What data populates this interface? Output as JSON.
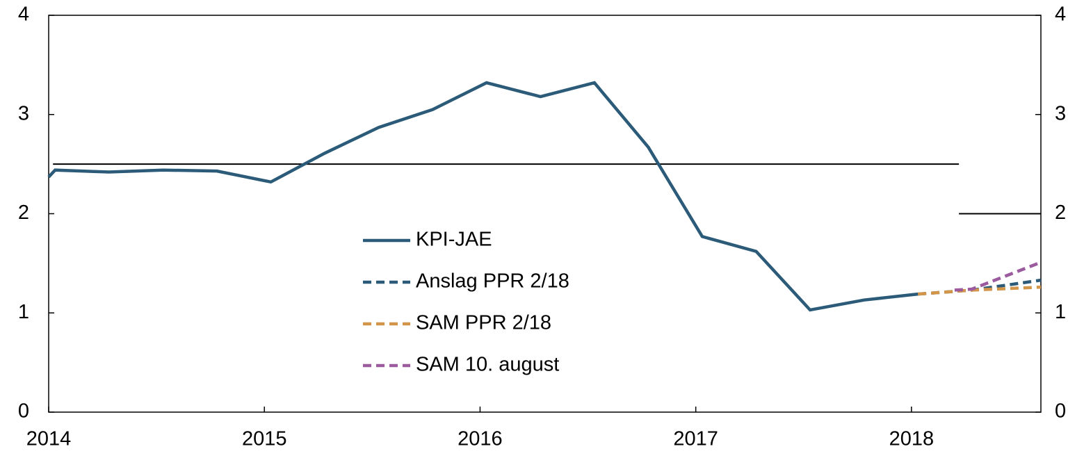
{
  "chart_data": {
    "type": "line",
    "xlim": [
      2014,
      2018.6
    ],
    "xticks": [
      2014,
      2015,
      2016,
      2017,
      2018
    ],
    "ylim": [
      0,
      4
    ],
    "yticks": [
      0,
      1,
      2,
      3,
      4
    ],
    "y2lim": [
      0,
      4
    ],
    "y2ticks": [
      0,
      1,
      2,
      3,
      4
    ],
    "legend": "center",
    "series": [
      {
        "name": "KPI-JAE",
        "color": "#2b5b78",
        "dash": false,
        "x": [
          2014.0,
          2014.03,
          2014.28,
          2014.53,
          2014.78,
          2015.03,
          2015.28,
          2015.53,
          2015.78,
          2016.03,
          2016.28,
          2016.53,
          2016.78,
          2017.03,
          2017.28,
          2017.53,
          2017.78,
          2018.03
        ],
        "values": [
          2.37,
          2.44,
          2.42,
          2.44,
          2.43,
          2.32,
          2.61,
          2.87,
          3.05,
          3.32,
          3.18,
          3.32,
          2.67,
          1.77,
          1.62,
          1.03,
          1.13,
          1.19
        ]
      },
      {
        "name": "Anslag PPR 2/18",
        "color": "#2b5b78",
        "dash": true,
        "x": [
          2018.03,
          2018.28,
          2018.6
        ],
        "values": [
          1.19,
          1.23,
          1.33
        ]
      },
      {
        "name": "SAM PPR 2/18",
        "color": "#d2954a",
        "dash": true,
        "x": [
          2018.03,
          2018.28,
          2018.6
        ],
        "values": [
          1.19,
          1.23,
          1.26
        ]
      },
      {
        "name": "SAM 10. august",
        "color": "#9b5b9e",
        "dash": true,
        "x": [
          2018.2,
          2018.28,
          2018.6
        ],
        "values": [
          1.23,
          1.24,
          1.51
        ]
      }
    ],
    "reference_lines": [
      {
        "value": 2.5,
        "x": [
          2014.02,
          2018.22
        ]
      },
      {
        "value": 2,
        "x": [
          2018.22,
          2018.6
        ]
      }
    ]
  }
}
